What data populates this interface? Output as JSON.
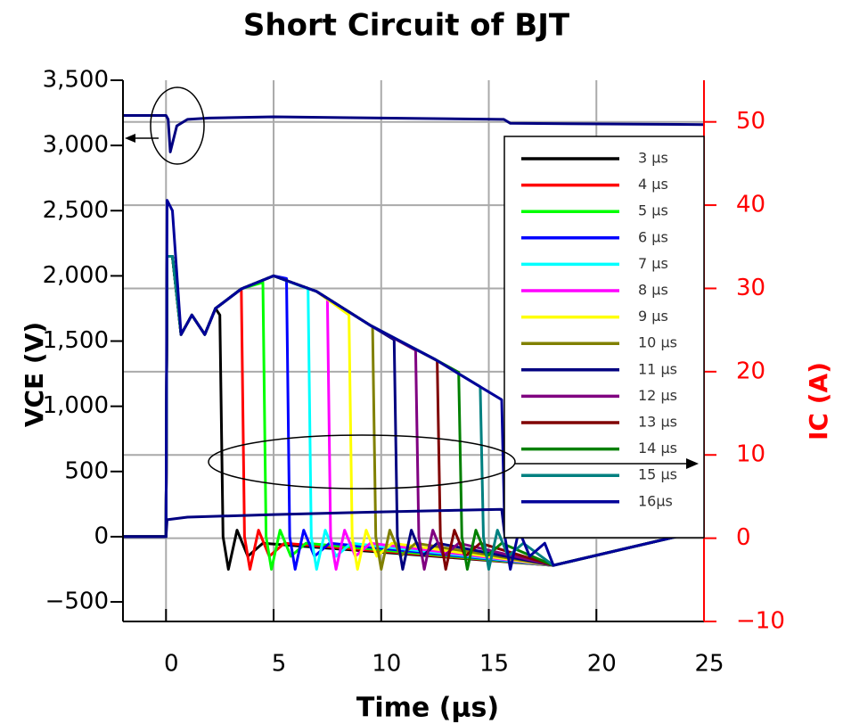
{
  "chart_data": {
    "type": "line",
    "title": "Short Circuit of BJT",
    "xlabel": "Time (µs)",
    "ylabel": "VCE (V)",
    "y2label": "IC (A)",
    "xlim": [
      -2,
      25
    ],
    "xticks": [
      0,
      5,
      10,
      15,
      20,
      25
    ],
    "ylim": [
      -650,
      3500
    ],
    "yticks": [
      {
        "value": -500,
        "label": "−500"
      },
      0,
      500,
      {
        "value": 1000,
        "label": "1,000"
      },
      {
        "value": 1500,
        "label": "1,500"
      },
      {
        "value": 2000,
        "label": "2,000"
      },
      {
        "value": 2500,
        "label": "2,500"
      },
      {
        "value": 3000,
        "label": "3,000"
      },
      {
        "value": 3500,
        "label": "3,500"
      }
    ],
    "y2lim": [
      -10,
      55
    ],
    "y2ticks": [
      {
        "value": -10,
        "label": "−10"
      },
      0,
      10,
      20,
      30,
      40,
      50
    ],
    "grid": true,
    "legend": "right",
    "series": [
      {
        "name": "3 µs",
        "color": "#000000",
        "x": [
          -2,
          0,
          0.05,
          0.3,
          0.7,
          1.2,
          1.8,
          2.3,
          2.5,
          2.65,
          2.9,
          3.3,
          3.8,
          4.5,
          18,
          25
        ],
        "values": [
          0,
          0,
          2150,
          2150,
          1550,
          1700,
          1550,
          1750,
          1700,
          0,
          -250,
          50,
          -150,
          -50,
          -220,
          50
        ]
      },
      {
        "name": "4 µs",
        "color": "#ff0000",
        "x": [
          -2,
          0,
          0.05,
          0.3,
          0.7,
          1.2,
          1.8,
          2.3,
          3.5,
          3.65,
          3.9,
          4.3,
          4.8,
          5.5,
          18,
          25
        ],
        "values": [
          0,
          0,
          2150,
          2150,
          1550,
          1700,
          1550,
          1750,
          1900,
          0,
          -250,
          50,
          -150,
          -50,
          -220,
          50
        ]
      },
      {
        "name": "5 µs",
        "color": "#00ff00",
        "x": [
          -2,
          0,
          0.05,
          0.3,
          0.7,
          1.2,
          1.8,
          2.3,
          3.5,
          4.5,
          4.65,
          4.9,
          5.3,
          5.8,
          6.5,
          18,
          25
        ],
        "values": [
          0,
          0,
          2150,
          2150,
          1550,
          1700,
          1550,
          1750,
          1900,
          1950,
          0,
          -250,
          50,
          -150,
          -50,
          -220,
          50
        ]
      },
      {
        "name": "6 µs",
        "color": "#0000ff",
        "x": [
          -2,
          0,
          0.05,
          0.3,
          0.7,
          1.2,
          1.8,
          2.3,
          3.5,
          5,
          5.6,
          5.75,
          6,
          6.4,
          6.9,
          7.6,
          18,
          25
        ],
        "values": [
          0,
          0,
          2150,
          2150,
          1550,
          1700,
          1550,
          1750,
          1900,
          2000,
          1980,
          0,
          -250,
          50,
          -150,
          -50,
          -220,
          50
        ]
      },
      {
        "name": "7 µs",
        "color": "#00ffff",
        "x": [
          -2,
          0,
          0.05,
          0.3,
          0.7,
          1.2,
          1.8,
          2.3,
          3.5,
          5,
          6.6,
          6.75,
          7,
          7.4,
          7.9,
          8.6,
          18,
          25
        ],
        "values": [
          0,
          0,
          2150,
          2150,
          1550,
          1700,
          1550,
          1750,
          1900,
          2000,
          1900,
          0,
          -250,
          50,
          -150,
          -50,
          -220,
          50
        ]
      },
      {
        "name": "8 µs",
        "color": "#ff00ff",
        "x": [
          -2,
          0,
          0.05,
          0.3,
          0.7,
          1.2,
          1.8,
          2.3,
          3.5,
          5,
          7,
          7.5,
          7.65,
          7.9,
          8.3,
          8.8,
          9.5,
          18,
          25
        ],
        "values": [
          0,
          0,
          2150,
          2150,
          1550,
          1700,
          1550,
          1750,
          1900,
          2000,
          1880,
          1820,
          0,
          -250,
          50,
          -150,
          -50,
          -220,
          50
        ]
      },
      {
        "name": "9 µs",
        "color": "#ffff00",
        "x": [
          -2,
          0,
          0.05,
          0.3,
          0.7,
          1.2,
          1.8,
          2.3,
          3.5,
          5,
          7,
          8.5,
          8.65,
          8.9,
          9.3,
          9.8,
          10.5,
          18,
          25
        ],
        "values": [
          0,
          0,
          2150,
          2150,
          1550,
          1700,
          1550,
          1750,
          1900,
          2000,
          1880,
          1700,
          0,
          -250,
          50,
          -150,
          -50,
          -220,
          50
        ]
      },
      {
        "name": "10 µs",
        "color": "#808000",
        "x": [
          -2,
          0,
          0.05,
          0.3,
          0.7,
          1.2,
          1.8,
          2.3,
          3.5,
          5,
          7,
          9.6,
          9.75,
          10,
          10.4,
          10.9,
          11.6,
          18,
          25
        ],
        "values": [
          0,
          0,
          2150,
          2150,
          1550,
          1700,
          1550,
          1750,
          1900,
          2000,
          1880,
          1610,
          0,
          -250,
          50,
          -150,
          -50,
          -220,
          50
        ]
      },
      {
        "name": "11 µs",
        "color": "#000080",
        "x": [
          -2,
          0,
          0.05,
          0.3,
          0.7,
          1.2,
          1.8,
          2.3,
          3.5,
          5,
          7,
          9.5,
          10.6,
          10.75,
          11,
          11.4,
          11.9,
          12.6,
          18,
          25
        ],
        "values": [
          0,
          0,
          2150,
          2150,
          1550,
          1700,
          1550,
          1750,
          1900,
          2000,
          1880,
          1620,
          1510,
          0,
          -250,
          50,
          -150,
          -50,
          -220,
          50
        ]
      },
      {
        "name": "12 µs",
        "color": "#800080",
        "x": [
          -2,
          0,
          0.05,
          0.3,
          0.7,
          1.2,
          1.8,
          2.3,
          3.5,
          5,
          7,
          9.5,
          11.6,
          11.75,
          12,
          12.4,
          12.9,
          13.6,
          18,
          25
        ],
        "values": [
          0,
          0,
          2150,
          2150,
          1550,
          1700,
          1550,
          1750,
          1900,
          2000,
          1880,
          1620,
          1430,
          0,
          -250,
          50,
          -150,
          -50,
          -220,
          50
        ]
      },
      {
        "name": "13 µs",
        "color": "#800000",
        "x": [
          -2,
          0,
          0.05,
          0.3,
          0.7,
          1.2,
          1.8,
          2.3,
          3.5,
          5,
          7,
          9.5,
          12.6,
          12.75,
          13,
          13.4,
          13.9,
          14.6,
          18,
          25
        ],
        "values": [
          0,
          0,
          2150,
          2150,
          1550,
          1700,
          1550,
          1750,
          1900,
          2000,
          1880,
          1620,
          1350,
          0,
          -250,
          50,
          -150,
          -50,
          -220,
          50
        ]
      },
      {
        "name": "14 µs",
        "color": "#008000",
        "x": [
          -2,
          0,
          0.05,
          0.3,
          0.7,
          1.2,
          1.8,
          2.3,
          3.5,
          5,
          7,
          9.5,
          12.5,
          13.6,
          13.75,
          14,
          14.4,
          14.9,
          15.6,
          18,
          25
        ],
        "values": [
          0,
          0,
          2150,
          2150,
          1550,
          1700,
          1550,
          1750,
          1900,
          2000,
          1880,
          1620,
          1360,
          1260,
          0,
          -250,
          50,
          -150,
          -50,
          -220,
          50
        ]
      },
      {
        "name": "15 µs",
        "color": "#008080",
        "x": [
          -2,
          0,
          0.05,
          0.3,
          0.7,
          1.2,
          1.8,
          2.3,
          3.5,
          5,
          7,
          9.5,
          12.5,
          14.6,
          14.75,
          15,
          15.4,
          15.9,
          16.6,
          18,
          25
        ],
        "values": [
          0,
          0,
          2150,
          2150,
          1550,
          1700,
          1550,
          1750,
          1900,
          2000,
          1880,
          1620,
          1360,
          1150,
          0,
          -250,
          50,
          -150,
          -50,
          -220,
          50
        ]
      },
      {
        "name": "16µs",
        "color": "#000099",
        "x": [
          -2,
          0,
          0.05,
          0.3,
          0.7,
          1.2,
          1.8,
          2.3,
          3.5,
          5,
          7,
          9.5,
          12.5,
          14.5,
          15.6,
          15.75,
          16,
          16.4,
          16.9,
          17.6,
          18,
          25
        ],
        "values": [
          0,
          0,
          2580,
          2500,
          1550,
          1700,
          1550,
          1750,
          1900,
          2000,
          1880,
          1620,
          1360,
          1160,
          1050,
          0,
          -250,
          50,
          -150,
          -50,
          -220,
          50
        ]
      }
    ],
    "traces": [
      {
        "color": "#000080",
        "x": [
          -2,
          0,
          0.1,
          0.2,
          0.5,
          1,
          2,
          5,
          10,
          15.7,
          16,
          25
        ],
        "values": [
          3230,
          3230,
          3200,
          2950,
          3150,
          3200,
          3210,
          3220,
          3210,
          3200,
          3170,
          3160
        ]
      },
      {
        "color": "#000080",
        "x": [
          -2,
          0,
          0.05,
          1,
          5,
          10,
          15.6,
          15.75,
          25
        ],
        "values": [
          0,
          0,
          130,
          150,
          170,
          190,
          210,
          0,
          0
        ]
      }
    ]
  }
}
